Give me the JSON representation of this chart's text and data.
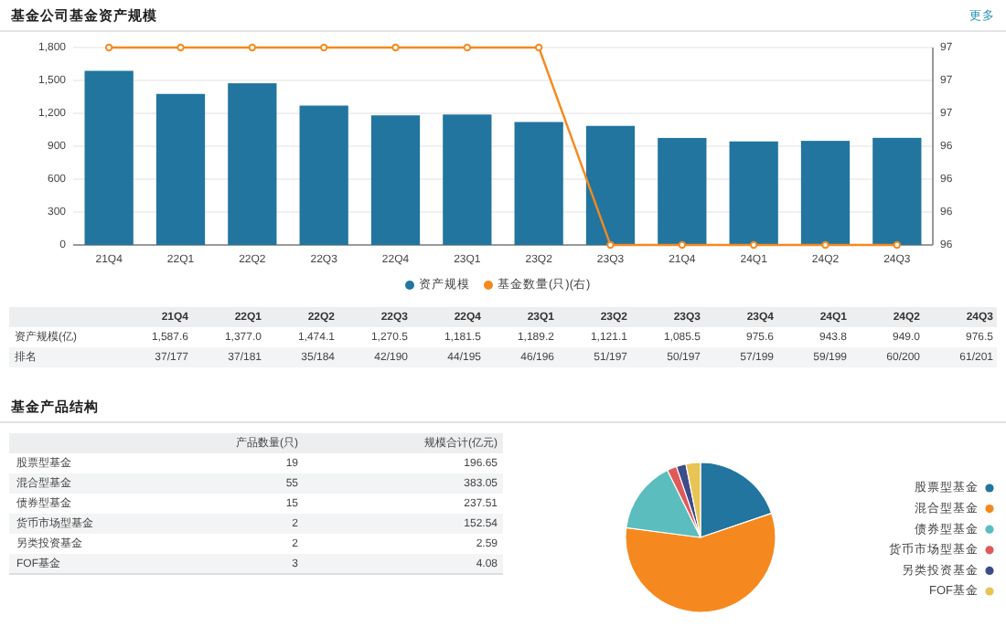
{
  "chart_data": [
    {
      "type": "bar",
      "title": "基金公司基金资产规模",
      "categories": [
        "21Q4",
        "22Q1",
        "22Q2",
        "22Q3",
        "22Q4",
        "23Q1",
        "23Q2",
        "23Q3",
        "21Q4",
        "24Q1",
        "24Q2",
        "24Q3"
      ],
      "series": [
        {
          "name": "资产规模",
          "type": "bar",
          "color": "#21759f",
          "values": [
            1587.6,
            1377.0,
            1474.1,
            1270.5,
            1181.5,
            1189.2,
            1121.1,
            1085.5,
            975.6,
            943.8,
            949.0,
            976.5
          ]
        },
        {
          "name": "基金数量(只)(右)",
          "type": "line",
          "axis": "y2",
          "color": "#f5891f",
          "marker": "circle",
          "values": [
            97,
            97,
            97,
            97,
            97,
            97,
            97,
            96,
            96,
            96,
            96,
            96
          ]
        }
      ],
      "ylim": [
        0,
        1800
      ],
      "yticks": [
        0,
        300,
        600,
        900,
        {
          "value": 1200,
          "label": "1,200"
        },
        {
          "value": 1500,
          "label": "1,500"
        },
        {
          "value": 1800,
          "label": "1,800"
        }
      ],
      "y2lim": [
        96,
        97
      ],
      "y2ticks": [
        96,
        {
          "value": 96.167,
          "label": "96"
        },
        {
          "value": 96.333,
          "label": "96"
        },
        {
          "value": 96.5,
          "label": "96"
        },
        {
          "value": 96.667,
          "label": "97"
        },
        {
          "value": 96.833,
          "label": "97"
        },
        97
      ],
      "grid": "y",
      "legend": "bottom",
      "annotations": [
        "更多",
        "21Q4",
        "22Q1",
        "22Q2",
        "22Q3",
        "22Q4",
        "23Q1",
        "23Q2",
        "23Q3",
        "23Q4",
        "24Q1",
        "24Q2",
        "24Q3",
        "资产规模(亿)",
        "1,587.6",
        "1,377.0",
        "1,474.1",
        "1,270.5",
        "1,181.5",
        "1,189.2",
        "1,121.1",
        "1,085.5",
        "975.6",
        "943.8",
        "949.0",
        "976.5",
        "排名",
        "37/177",
        "37/181",
        "35/184",
        "42/190",
        "44/195",
        "46/196",
        "51/197",
        "50/197",
        "57/199",
        "59/199",
        "60/200",
        "61/201"
      ]
    },
    {
      "type": "other",
      "title": "基金产品结构",
      "annotations": [
        "产品数量(只)",
        "规模合计(亿元)",
        "股票型基金",
        "19",
        "196.65",
        "混合型基金",
        "55",
        "383.05",
        "债券型基金",
        "15",
        "237.51",
        "货币市场型基金",
        "2",
        "152.54",
        "另类投资基金",
        "2",
        "2.59",
        "FOF基金",
        "3",
        "4.08"
      ]
    },
    {
      "type": "pie",
      "categories": [
        "股票型基金",
        "混合型基金",
        "债券型基金",
        "货币市场型基金",
        "另类投资基金",
        "FOF基金"
      ],
      "values": [
        19.79,
        57.29,
        15.63,
        2.08,
        2.08,
        3.13
      ],
      "colors": [
        "#21759f",
        "#f5891f",
        "#5bbdbd",
        "#e05a5a",
        "#3f4c8a",
        "#e8c454"
      ],
      "legend": "right"
    }
  ]
}
